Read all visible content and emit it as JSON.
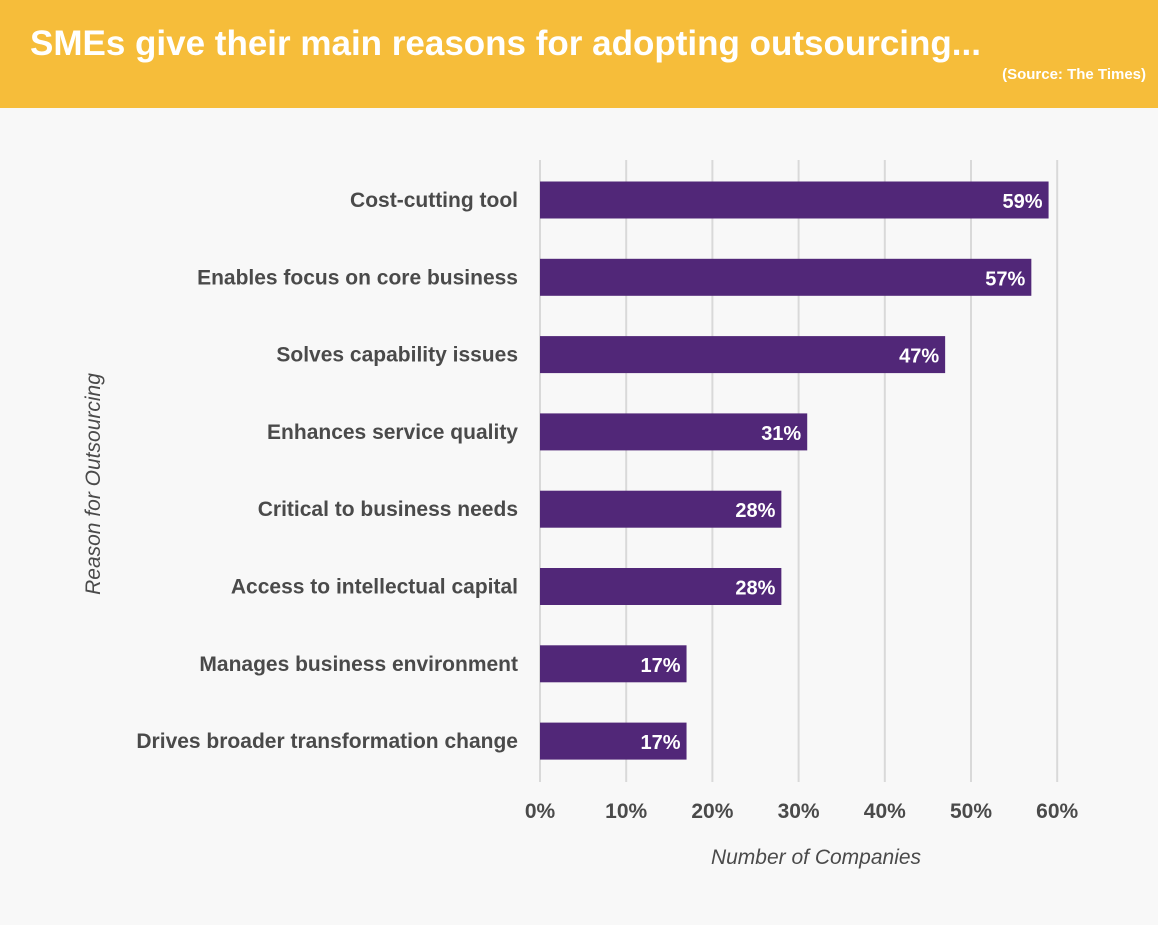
{
  "header": {
    "title": "SMEs give their main reasons for adopting outsourcing...",
    "source": "(Source: The Times)"
  },
  "chart_data": {
    "type": "bar",
    "orientation": "horizontal",
    "title": "SMEs give their main reasons for adopting outsourcing...",
    "subtitle": "(Source: The Times)",
    "categories": [
      "Cost-cutting tool",
      "Enables focus on core business",
      "Solves capability issues",
      "Enhances service quality",
      "Critical to business needs",
      "Access to intellectual capital",
      "Manages business environment",
      "Drives broader transformation change"
    ],
    "values": [
      59,
      57,
      47,
      31,
      28,
      28,
      17,
      17
    ],
    "data_labels": [
      "59%",
      "57%",
      "47%",
      "31%",
      "28%",
      "28%",
      "17%",
      "17%"
    ],
    "xlabel": "Number of Companies",
    "ylabel": "Reason for Outsourcing",
    "xlim": [
      0,
      60
    ],
    "x_ticks": [
      0,
      10,
      20,
      30,
      40,
      50,
      60
    ],
    "x_tick_labels": [
      "0%",
      "10%",
      "20%",
      "30%",
      "40%",
      "50%",
      "60%"
    ],
    "grid": "vertical",
    "legend": "none",
    "bar_color": "#512778",
    "grid_color": "#d9d9d9",
    "header_color": "#f6bd3a"
  }
}
